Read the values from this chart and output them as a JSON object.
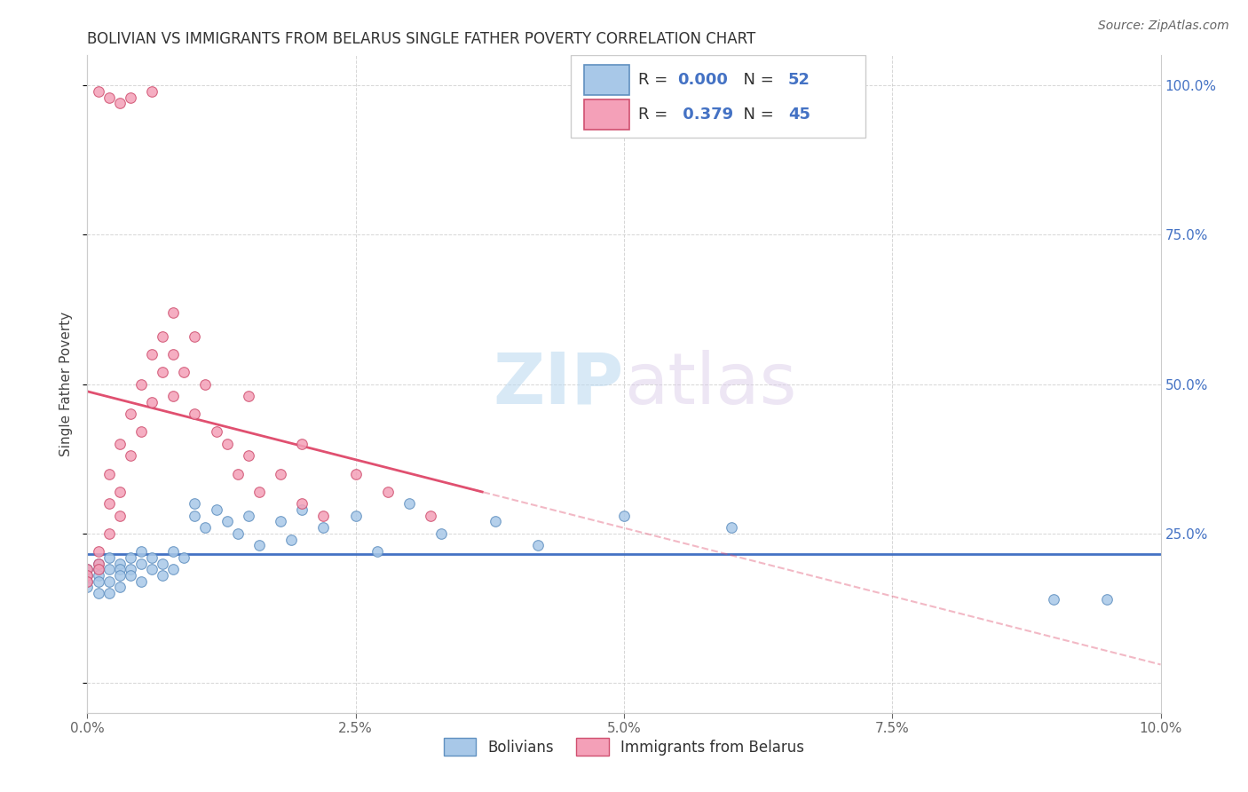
{
  "title": "BOLIVIAN VS IMMIGRANTS FROM BELARUS SINGLE FATHER POVERTY CORRELATION CHART",
  "source": "Source: ZipAtlas.com",
  "ylabel": "Single Father Poverty",
  "xlim": [
    0.0,
    0.1
  ],
  "ylim": [
    -0.05,
    1.05
  ],
  "xtick_vals": [
    0.0,
    0.025,
    0.05,
    0.075,
    0.1
  ],
  "xtick_labels": [
    "0.0%",
    "2.5%",
    "5.0%",
    "7.5%",
    "10.0%"
  ],
  "ytick_vals": [
    0.0,
    0.25,
    0.5,
    0.75,
    1.0
  ],
  "right_ytick_labels": [
    "",
    "25.0%",
    "50.0%",
    "75.0%",
    "100.0%"
  ],
  "color_bolivian": "#a8c8e8",
  "color_belarus": "#f4a0b8",
  "edge_bolivian": "#6090c0",
  "edge_belarus": "#d05070",
  "trendline_bolivian": "#4472c4",
  "trendline_belarus": "#e05070",
  "watermark_zip": "ZIP",
  "watermark_atlas": "atlas",
  "bolivian_x": [
    0.0,
    0.0,
    0.0,
    0.0,
    0.001,
    0.001,
    0.001,
    0.001,
    0.001,
    0.002,
    0.002,
    0.002,
    0.002,
    0.003,
    0.003,
    0.003,
    0.003,
    0.004,
    0.004,
    0.004,
    0.005,
    0.005,
    0.005,
    0.006,
    0.006,
    0.007,
    0.007,
    0.008,
    0.008,
    0.009,
    0.01,
    0.01,
    0.011,
    0.012,
    0.013,
    0.014,
    0.015,
    0.016,
    0.018,
    0.019,
    0.02,
    0.022,
    0.025,
    0.027,
    0.03,
    0.033,
    0.038,
    0.042,
    0.05,
    0.06,
    0.09,
    0.095
  ],
  "bolivian_y": [
    0.19,
    0.18,
    0.17,
    0.16,
    0.2,
    0.19,
    0.18,
    0.17,
    0.15,
    0.21,
    0.19,
    0.17,
    0.15,
    0.2,
    0.19,
    0.18,
    0.16,
    0.21,
    0.19,
    0.18,
    0.22,
    0.2,
    0.17,
    0.19,
    0.21,
    0.2,
    0.18,
    0.22,
    0.19,
    0.21,
    0.3,
    0.28,
    0.26,
    0.29,
    0.27,
    0.25,
    0.28,
    0.23,
    0.27,
    0.24,
    0.29,
    0.26,
    0.28,
    0.22,
    0.3,
    0.25,
    0.27,
    0.23,
    0.28,
    0.26,
    0.14,
    0.14
  ],
  "belarus_x": [
    0.0,
    0.0,
    0.0,
    0.001,
    0.001,
    0.001,
    0.002,
    0.002,
    0.002,
    0.003,
    0.003,
    0.003,
    0.004,
    0.004,
    0.005,
    0.005,
    0.006,
    0.006,
    0.007,
    0.007,
    0.008,
    0.008,
    0.009,
    0.01,
    0.011,
    0.012,
    0.013,
    0.014,
    0.015,
    0.016,
    0.018,
    0.02,
    0.022,
    0.025,
    0.028,
    0.032,
    0.004,
    0.006,
    0.002,
    0.003,
    0.001,
    0.008,
    0.01,
    0.015,
    0.02
  ],
  "belarus_y": [
    0.19,
    0.18,
    0.17,
    0.22,
    0.2,
    0.19,
    0.25,
    0.3,
    0.35,
    0.28,
    0.32,
    0.4,
    0.38,
    0.45,
    0.42,
    0.5,
    0.47,
    0.55,
    0.52,
    0.58,
    0.48,
    0.55,
    0.52,
    0.45,
    0.5,
    0.42,
    0.4,
    0.35,
    0.38,
    0.32,
    0.35,
    0.3,
    0.28,
    0.35,
    0.32,
    0.28,
    0.98,
    0.99,
    0.98,
    0.97,
    0.99,
    0.62,
    0.58,
    0.48,
    0.4
  ]
}
